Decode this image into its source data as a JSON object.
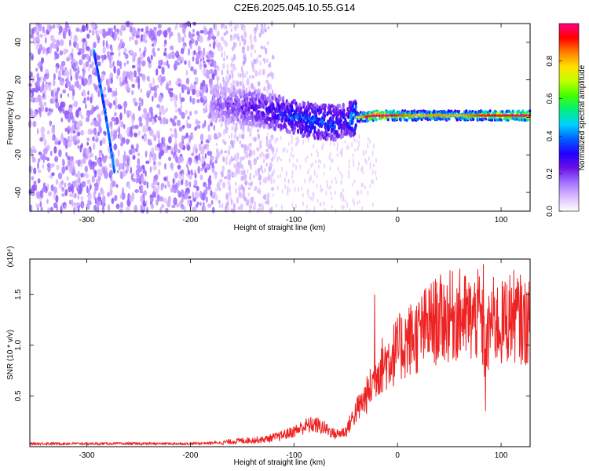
{
  "title": "C2E6.2025.045.10.55.G14",
  "chart_data": [
    {
      "type": "heatmap",
      "xlabel": "Height of straight line (km)",
      "ylabel": "Frequency (Hz)",
      "xlim": [
        -355,
        128
      ],
      "ylim": [
        -50,
        50
      ],
      "xticks": [
        -300,
        -200,
        -100,
        0,
        100
      ],
      "yticks": [
        -40,
        -20,
        0,
        20,
        40
      ],
      "grid": false,
      "colorbar": {
        "label": "Normalized spectral amplitude",
        "range": [
          0,
          1
        ],
        "ticks": [
          0.0,
          0.2,
          0.4,
          0.6,
          0.8
        ],
        "colormap": [
          "#ffffff",
          "#dcbcff",
          "#a070ff",
          "#6a10e8",
          "#2000ff",
          "#0060ff",
          "#00d0ff",
          "#00f080",
          "#40ff00",
          "#c0ff00",
          "#ffe000",
          "#ff8000",
          "#ff0000",
          "#ff0080"
        ]
      },
      "ridge": {
        "x": [
          -180,
          -160,
          -140,
          -120,
          -100,
          -80,
          -60,
          -50,
          -40,
          -20,
          0,
          20,
          40,
          60,
          80,
          100,
          128
        ],
        "y": [
          8,
          6,
          5,
          3,
          0,
          -2,
          -3,
          -2,
          0,
          1,
          1,
          1,
          1,
          1,
          1,
          1,
          1
        ],
        "amplitude": [
          0.15,
          0.2,
          0.25,
          0.3,
          0.35,
          0.4,
          0.35,
          0.3,
          0.5,
          0.9,
          0.7,
          0.6,
          0.65,
          0.6,
          0.7,
          0.75,
          0.8
        ]
      },
      "streak": {
        "x": [
          -293,
          -288,
          -283,
          -278,
          -273
        ],
        "y": [
          35,
          20,
          5,
          -12,
          -30
        ]
      },
      "noise_region": {
        "xlim": [
          -355,
          -175
        ],
        "amplitude": 0.15
      }
    },
    {
      "type": "line",
      "xlabel": "Height of straight line (km)",
      "ylabel": "SNR (10 * v/v)",
      "y_multiplier": "(x10⁴)",
      "xlim": [
        -355,
        128
      ],
      "ylim": [
        0,
        1.85
      ],
      "xticks": [
        -300,
        -200,
        -100,
        0,
        100
      ],
      "yticks": [
        0.5,
        1.0,
        1.5
      ],
      "grid": false,
      "series": [
        {
          "color": "#ee2222",
          "x": [
            -355,
            -300,
            -250,
            -200,
            -170,
            -150,
            -130,
            -115,
            -100,
            -90,
            -80,
            -70,
            -60,
            -50,
            -45,
            -40,
            -35,
            -30,
            -25,
            -20,
            -15,
            -10,
            -5,
            0,
            5,
            10,
            20,
            30,
            40,
            50,
            60,
            70,
            80,
            85,
            90,
            100,
            110,
            120,
            128
          ],
          "y": [
            0.03,
            0.03,
            0.03,
            0.03,
            0.04,
            0.06,
            0.07,
            0.1,
            0.15,
            0.2,
            0.22,
            0.18,
            0.12,
            0.15,
            0.25,
            0.35,
            0.42,
            0.5,
            0.6,
            0.75,
            0.8,
            0.85,
            0.9,
            0.95,
            1.0,
            1.05,
            1.1,
            1.2,
            1.25,
            1.28,
            1.3,
            1.25,
            1.3,
            0.9,
            1.25,
            1.2,
            1.3,
            1.25,
            1.2
          ],
          "spikes": [
            {
              "x": -22,
              "y": 1.5
            },
            {
              "x": 77,
              "y": 1.55
            },
            {
              "x": 83,
              "y": 1.8
            },
            {
              "x": 85,
              "y": 0.35
            },
            {
              "x": 122,
              "y": 1.5
            }
          ]
        }
      ]
    }
  ]
}
